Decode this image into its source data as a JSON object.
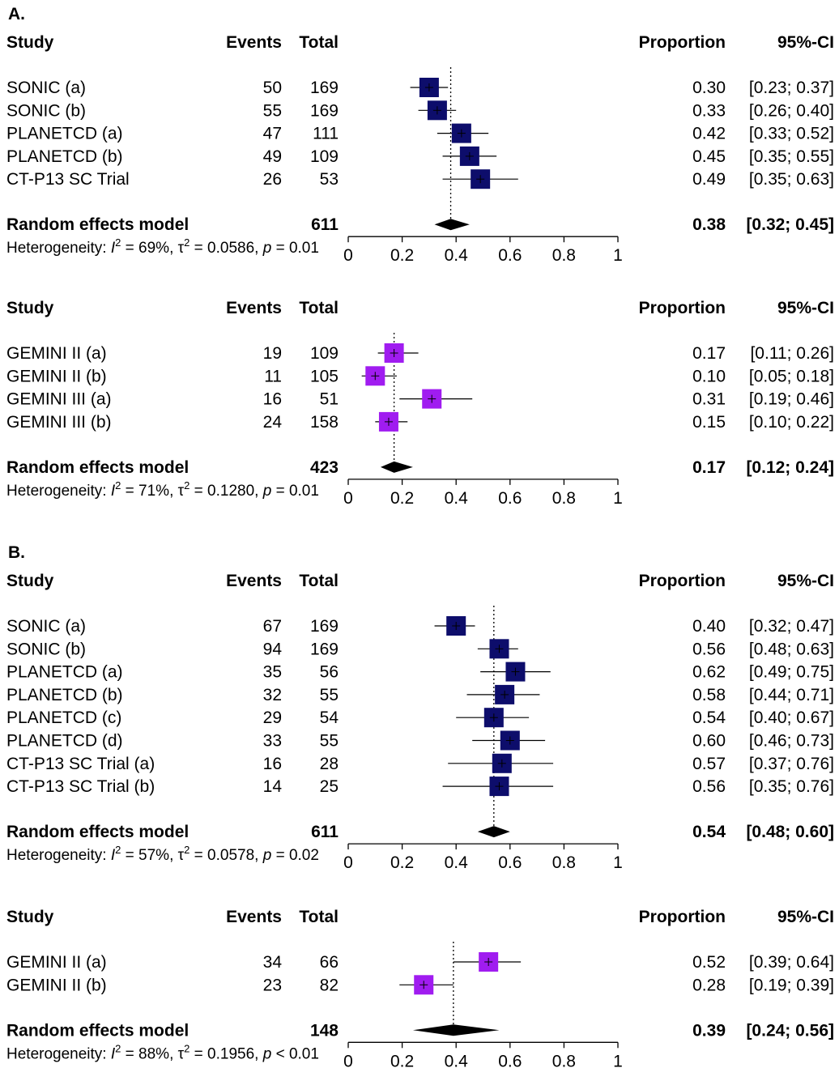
{
  "headers": {
    "study": "Study",
    "events": "Events",
    "total": "Total",
    "proportion": "Proportion",
    "ci": "95%-CI"
  },
  "colors": {
    "panel_a": "#0d0d6b",
    "panel_b": "#a01cf0",
    "diamond": "#000000"
  },
  "axis_ticks": [
    "0",
    "0.2",
    "0.4",
    "0.6",
    "0.8",
    "1"
  ],
  "chart_data": [
    {
      "type": "forest",
      "section_label": "A.",
      "color": "#0d0d6b",
      "studies": [
        {
          "name": "SONIC (a)",
          "events": "50",
          "total": "169",
          "prop": 0.3,
          "lo": 0.23,
          "hi": 0.37,
          "prop_text": "0.30",
          "ci_text": "[0.23; 0.37]"
        },
        {
          "name": "SONIC (b)",
          "events": "55",
          "total": "169",
          "prop": 0.33,
          "lo": 0.26,
          "hi": 0.4,
          "prop_text": "0.33",
          "ci_text": "[0.26; 0.40]"
        },
        {
          "name": "PLANETCD (a)",
          "events": "47",
          "total": "111",
          "prop": 0.42,
          "lo": 0.33,
          "hi": 0.52,
          "prop_text": "0.42",
          "ci_text": "[0.33; 0.52]"
        },
        {
          "name": "PLANETCD (b)",
          "events": "49",
          "total": "109",
          "prop": 0.45,
          "lo": 0.35,
          "hi": 0.55,
          "prop_text": "0.45",
          "ci_text": "[0.35; 0.55]"
        },
        {
          "name": "CT-P13 SC Trial",
          "events": "26",
          "total": "53",
          "prop": 0.49,
          "lo": 0.35,
          "hi": 0.63,
          "prop_text": "0.49",
          "ci_text": "[0.35; 0.63]"
        }
      ],
      "pooled": {
        "label": "Random effects model",
        "total": "611",
        "est": 0.38,
        "lo": 0.32,
        "hi": 0.45,
        "prop_text": "0.38",
        "ci_text": "[0.32; 0.45]"
      },
      "heterogeneity": {
        "prefix": "Heterogeneity: ",
        "i2": "69%",
        "tau2": "0.0586",
        "p": "0.01",
        "p_op": "="
      },
      "xlim": [
        0,
        1
      ]
    },
    {
      "type": "forest",
      "section_label": "",
      "color": "#a01cf0",
      "studies": [
        {
          "name": "GEMINI II (a)",
          "events": "19",
          "total": "109",
          "prop": 0.17,
          "lo": 0.11,
          "hi": 0.26,
          "prop_text": "0.17",
          "ci_text": "[0.11; 0.26]"
        },
        {
          "name": "GEMINI II (b)",
          "events": "11",
          "total": "105",
          "prop": 0.1,
          "lo": 0.05,
          "hi": 0.18,
          "prop_text": "0.10",
          "ci_text": "[0.05; 0.18]"
        },
        {
          "name": "GEMINI III (a)",
          "events": "16",
          "total": "51",
          "prop": 0.31,
          "lo": 0.19,
          "hi": 0.46,
          "prop_text": "0.31",
          "ci_text": "[0.19; 0.46]"
        },
        {
          "name": "GEMINI III (b)",
          "events": "24",
          "total": "158",
          "prop": 0.15,
          "lo": 0.1,
          "hi": 0.22,
          "prop_text": "0.15",
          "ci_text": "[0.10; 0.22]"
        }
      ],
      "pooled": {
        "label": "Random effects model",
        "total": "423",
        "est": 0.17,
        "lo": 0.12,
        "hi": 0.24,
        "prop_text": "0.17",
        "ci_text": "[0.12; 0.24]"
      },
      "heterogeneity": {
        "prefix": "Heterogeneity: ",
        "i2": "71%",
        "tau2": "0.1280",
        "p": "0.01",
        "p_op": "="
      },
      "xlim": [
        0,
        1
      ]
    },
    {
      "type": "forest",
      "section_label": "B.",
      "color": "#0d0d6b",
      "studies": [
        {
          "name": "SONIC (a)",
          "events": "67",
          "total": "169",
          "prop": 0.4,
          "lo": 0.32,
          "hi": 0.47,
          "prop_text": "0.40",
          "ci_text": "[0.32; 0.47]"
        },
        {
          "name": "SONIC (b)",
          "events": "94",
          "total": "169",
          "prop": 0.56,
          "lo": 0.48,
          "hi": 0.63,
          "prop_text": "0.56",
          "ci_text": "[0.48; 0.63]"
        },
        {
          "name": "PLANETCD (a)",
          "events": "35",
          "total": "56",
          "prop": 0.62,
          "lo": 0.49,
          "hi": 0.75,
          "prop_text": "0.62",
          "ci_text": "[0.49; 0.75]"
        },
        {
          "name": "PLANETCD (b)",
          "events": "32",
          "total": "55",
          "prop": 0.58,
          "lo": 0.44,
          "hi": 0.71,
          "prop_text": "0.58",
          "ci_text": "[0.44; 0.71]"
        },
        {
          "name": "PLANETCD (c)",
          "events": "29",
          "total": "54",
          "prop": 0.54,
          "lo": 0.4,
          "hi": 0.67,
          "prop_text": "0.54",
          "ci_text": "[0.40; 0.67]"
        },
        {
          "name": "PLANETCD (d)",
          "events": "33",
          "total": "55",
          "prop": 0.6,
          "lo": 0.46,
          "hi": 0.73,
          "prop_text": "0.60",
          "ci_text": "[0.46; 0.73]"
        },
        {
          "name": "CT-P13 SC Trial (a)",
          "events": "16",
          "total": "28",
          "prop": 0.57,
          "lo": 0.37,
          "hi": 0.76,
          "prop_text": "0.57",
          "ci_text": "[0.37; 0.76]"
        },
        {
          "name": "CT-P13 SC Trial (b)",
          "events": "14",
          "total": "25",
          "prop": 0.56,
          "lo": 0.35,
          "hi": 0.76,
          "prop_text": "0.56",
          "ci_text": "[0.35; 0.76]"
        }
      ],
      "pooled": {
        "label": "Random effects model",
        "total": "611",
        "est": 0.54,
        "lo": 0.48,
        "hi": 0.6,
        "prop_text": "0.54",
        "ci_text": "[0.48; 0.60]"
      },
      "heterogeneity": {
        "prefix": "Heterogeneity: ",
        "i2": "57%",
        "tau2": "0.0578",
        "p": "0.02",
        "p_op": "="
      },
      "xlim": [
        0,
        1
      ]
    },
    {
      "type": "forest",
      "section_label": "",
      "color": "#a01cf0",
      "studies": [
        {
          "name": "GEMINI II (a)",
          "events": "34",
          "total": "66",
          "prop": 0.52,
          "lo": 0.39,
          "hi": 0.64,
          "prop_text": "0.52",
          "ci_text": "[0.39; 0.64]"
        },
        {
          "name": "GEMINI II (b)",
          "events": "23",
          "total": "82",
          "prop": 0.28,
          "lo": 0.19,
          "hi": 0.39,
          "prop_text": "0.28",
          "ci_text": "[0.19; 0.39]"
        }
      ],
      "pooled": {
        "label": "Random effects model",
        "total": "148",
        "est": 0.39,
        "lo": 0.24,
        "hi": 0.56,
        "prop_text": "0.39",
        "ci_text": "[0.24; 0.56]"
      },
      "heterogeneity": {
        "prefix": "Heterogeneity: ",
        "i2": "88%",
        "tau2": "0.1956",
        "p": "0.01",
        "p_op": "<"
      },
      "xlim": [
        0,
        1
      ]
    }
  ]
}
